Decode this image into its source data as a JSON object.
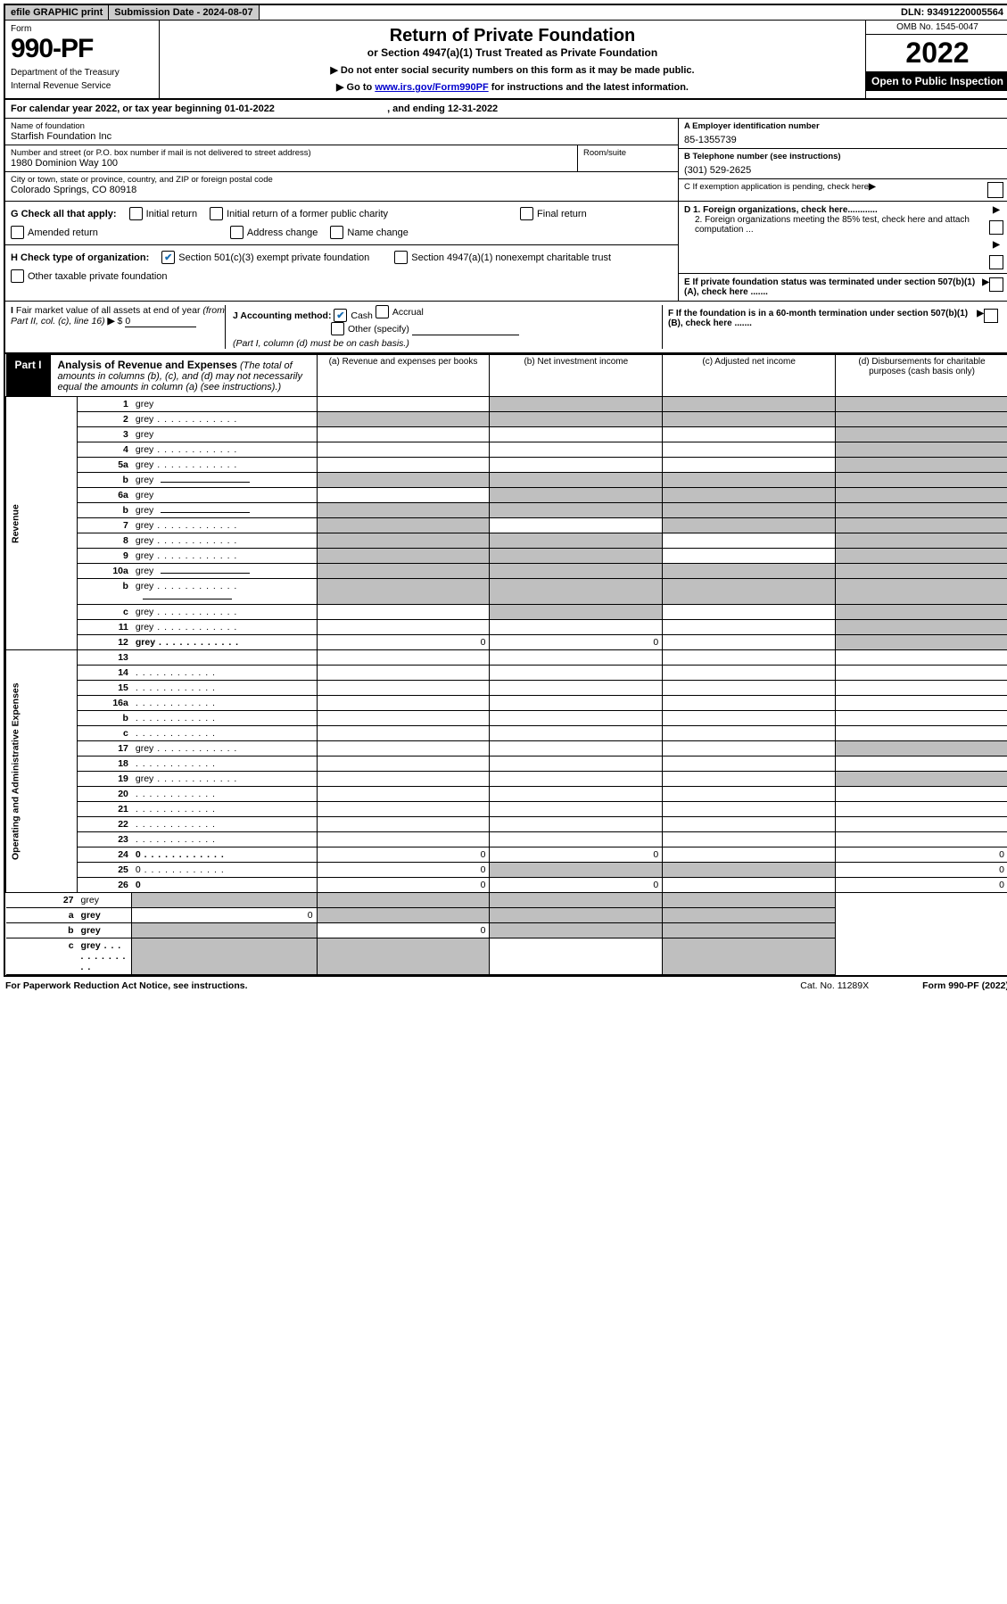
{
  "colors": {
    "header_grey": "#cccccc",
    "cell_grey": "#bfbfbf",
    "black": "#000000",
    "white": "#ffffff",
    "link": "#0000cc",
    "check_blue": "#1a6fb5"
  },
  "top": {
    "efile": "efile GRAPHIC print",
    "submission_label": "Submission Date - 2024-08-07",
    "dln": "DLN: 93491220005564"
  },
  "header": {
    "form_label": "Form",
    "form_number": "990-PF",
    "dept1": "Department of the Treasury",
    "dept2": "Internal Revenue Service",
    "title": "Return of Private Foundation",
    "subtitle": "or Section 4947(a)(1) Trust Treated as Private Foundation",
    "note1": "▶ Do not enter social security numbers on this form as it may be made public.",
    "note2_pre": "▶ Go to ",
    "note2_link": "www.irs.gov/Form990PF",
    "note2_post": " for instructions and the latest information.",
    "omb": "OMB No. 1545-0047",
    "year": "2022",
    "open": "Open to Public Inspection"
  },
  "period": {
    "text_pre": "For calendar year 2022, or tax year beginning ",
    "begin": "01-01-2022",
    "text_mid": " , and ending ",
    "end": "12-31-2022"
  },
  "entity": {
    "name_label": "Name of foundation",
    "name": "Starfish Foundation Inc",
    "addr_label": "Number and street (or P.O. box number if mail is not delivered to street address)",
    "addr": "1980 Dominion Way 100",
    "room_label": "Room/suite",
    "room": "",
    "city_label": "City or town, state or province, country, and ZIP or foreign postal code",
    "city": "Colorado Springs, CO  80918"
  },
  "right_info": {
    "a_label": "A Employer identification number",
    "a_val": "85-1355739",
    "b_label": "B Telephone number (see instructions)",
    "b_val": "(301) 529-2625",
    "c_label": "C If exemption application is pending, check here",
    "d1": "D 1. Foreign organizations, check here............",
    "d2": "2. Foreign organizations meeting the 85% test, check here and attach computation ...",
    "e": "E  If private foundation status was terminated under section 507(b)(1)(A), check here .......",
    "f": "F  If the foundation is in a 60-month termination under section 507(b)(1)(B), check here ......."
  },
  "g": {
    "label": "G Check all that apply:",
    "opts": [
      "Initial return",
      "Initial return of a former public charity",
      "Final return",
      "Amended return",
      "Address change",
      "Name change"
    ]
  },
  "h": {
    "label": "H Check type of organization:",
    "opt1": "Section 501(c)(3) exempt private foundation",
    "opt1_checked": true,
    "opt2": "Section 4947(a)(1) nonexempt charitable trust",
    "opt3": "Other taxable private foundation"
  },
  "i": {
    "label": "I Fair market value of all assets at end of year (from Part II, col. (c), line 16) ▶ $",
    "val": "0"
  },
  "j": {
    "label": "J Accounting method:",
    "cash": "Cash",
    "cash_checked": true,
    "accrual": "Accrual",
    "other": "Other (specify)",
    "note": "(Part I, column (d) must be on cash basis.)"
  },
  "part1": {
    "label": "Part I",
    "title": "Analysis of Revenue and Expenses",
    "title_note": "(The total of amounts in columns (b), (c), and (d) may not necessarily equal the amounts in column (a) (see instructions).)",
    "col_a": "(a)  Revenue and expenses per books",
    "col_b": "(b)  Net investment income",
    "col_c": "(c)  Adjusted net income",
    "col_d": "(d)  Disbursements for charitable purposes (cash basis only)"
  },
  "sections": {
    "revenue": "Revenue",
    "expenses": "Operating and Administrative Expenses"
  },
  "rows": [
    {
      "n": "1",
      "d": "grey",
      "a": "",
      "b": "grey",
      "c": "grey"
    },
    {
      "n": "2",
      "d": "grey",
      "dots": true,
      "a": "grey",
      "b": "grey",
      "c": "grey"
    },
    {
      "n": "3",
      "d": "grey",
      "a": "",
      "b": "",
      "c": ""
    },
    {
      "n": "4",
      "d": "grey",
      "dots": true,
      "a": "",
      "b": "",
      "c": ""
    },
    {
      "n": "5a",
      "d": "grey",
      "dots": true,
      "a": "",
      "b": "",
      "c": ""
    },
    {
      "n": "b",
      "d": "grey",
      "inset": true,
      "a": "grey",
      "b": "grey",
      "c": "grey"
    },
    {
      "n": "6a",
      "d": "grey",
      "a": "",
      "b": "grey",
      "c": "grey"
    },
    {
      "n": "b",
      "d": "grey",
      "inset": true,
      "a": "grey",
      "b": "grey",
      "c": "grey"
    },
    {
      "n": "7",
      "d": "grey",
      "dots": true,
      "a": "grey",
      "b": "",
      "c": "grey"
    },
    {
      "n": "8",
      "d": "grey",
      "dots": true,
      "a": "grey",
      "b": "grey",
      "c": ""
    },
    {
      "n": "9",
      "d": "grey",
      "dots": true,
      "a": "grey",
      "b": "grey",
      "c": ""
    },
    {
      "n": "10a",
      "d": "grey",
      "inset": true,
      "a": "grey",
      "b": "grey",
      "c": "grey"
    },
    {
      "n": "b",
      "d": "grey",
      "dots": true,
      "inset": true,
      "a": "grey",
      "b": "grey",
      "c": "grey"
    },
    {
      "n": "c",
      "d": "grey",
      "dots": true,
      "a": "",
      "b": "grey",
      "c": ""
    },
    {
      "n": "11",
      "d": "grey",
      "dots": true,
      "a": "",
      "b": "",
      "c": ""
    },
    {
      "n": "12",
      "d": "grey",
      "dots": true,
      "bold": true,
      "a": "0",
      "b": "0",
      "c": ""
    }
  ],
  "exp_rows": [
    {
      "n": "13",
      "d": "",
      "a": "",
      "b": "",
      "c": ""
    },
    {
      "n": "14",
      "d": "",
      "dots": true,
      "a": "",
      "b": "",
      "c": ""
    },
    {
      "n": "15",
      "d": "",
      "dots": true,
      "a": "",
      "b": "",
      "c": ""
    },
    {
      "n": "16a",
      "d": "",
      "dots": true,
      "a": "",
      "b": "",
      "c": ""
    },
    {
      "n": "b",
      "d": "",
      "dots": true,
      "a": "",
      "b": "",
      "c": ""
    },
    {
      "n": "c",
      "d": "",
      "dots": true,
      "a": "",
      "b": "",
      "c": ""
    },
    {
      "n": "17",
      "d": "grey",
      "dots": true,
      "a": "",
      "b": "",
      "c": ""
    },
    {
      "n": "18",
      "d": "",
      "dots": true,
      "a": "",
      "b": "",
      "c": ""
    },
    {
      "n": "19",
      "d": "grey",
      "dots": true,
      "a": "",
      "b": "",
      "c": ""
    },
    {
      "n": "20",
      "d": "",
      "dots": true,
      "a": "",
      "b": "",
      "c": ""
    },
    {
      "n": "21",
      "d": "",
      "dots": true,
      "a": "",
      "b": "",
      "c": ""
    },
    {
      "n": "22",
      "d": "",
      "dots": true,
      "a": "",
      "b": "",
      "c": ""
    },
    {
      "n": "23",
      "d": "",
      "dots": true,
      "a": "",
      "b": "",
      "c": ""
    },
    {
      "n": "24",
      "d": "0",
      "dots": true,
      "bold": true,
      "a": "0",
      "b": "0",
      "c": ""
    },
    {
      "n": "25",
      "d": "0",
      "dots": true,
      "a": "0",
      "b": "grey",
      "c": "grey"
    },
    {
      "n": "26",
      "d": "0",
      "bold": true,
      "a": "0",
      "b": "0",
      "c": ""
    }
  ],
  "net_rows": [
    {
      "n": "27",
      "d": "grey",
      "a": "grey",
      "b": "grey",
      "c": "grey"
    },
    {
      "n": "a",
      "d": "grey",
      "bold": true,
      "a": "0",
      "b": "grey",
      "c": "grey"
    },
    {
      "n": "b",
      "d": "grey",
      "bold": true,
      "a": "grey",
      "b": "0",
      "c": "grey"
    },
    {
      "n": "c",
      "d": "grey",
      "bold": true,
      "dots": true,
      "a": "grey",
      "b": "grey",
      "c": ""
    }
  ],
  "footer": {
    "left": "For Paperwork Reduction Act Notice, see instructions.",
    "mid": "Cat. No. 11289X",
    "right": "Form 990-PF (2022)"
  }
}
